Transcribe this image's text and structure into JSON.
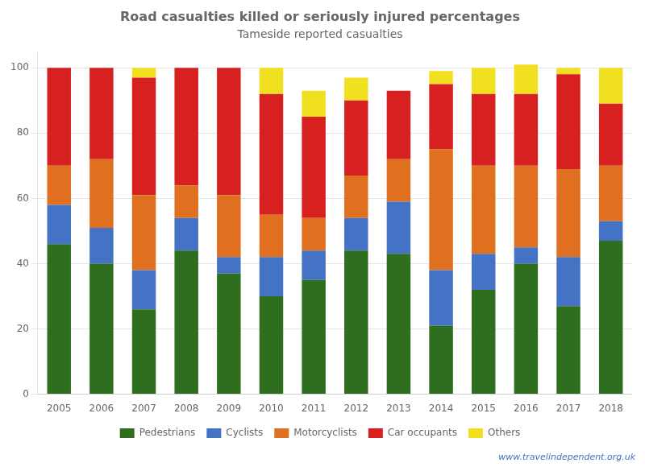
{
  "chart_data": {
    "type": "bar",
    "title": "Road casualties killed or seriously injured percentages",
    "subtitle": "Tameside reported casualties",
    "categories": [
      "2005",
      "2006",
      "2007",
      "2008",
      "2009",
      "2010",
      "2011",
      "2012",
      "2013",
      "2014",
      "2015",
      "2016",
      "2017",
      "2018"
    ],
    "series": [
      {
        "name": "Pedestrians",
        "color": "#2e6e1e",
        "values": [
          46,
          40,
          26,
          44,
          37,
          30,
          35,
          44,
          43,
          21,
          32,
          40,
          27,
          47
        ]
      },
      {
        "name": "Cyclists",
        "color": "#4472c4",
        "values": [
          12,
          11,
          12,
          10,
          5,
          12,
          9,
          10,
          16,
          17,
          11,
          5,
          15,
          6
        ]
      },
      {
        "name": "Motorcyclists",
        "color": "#e07020",
        "values": [
          12,
          21,
          23,
          10,
          19,
          13,
          10,
          13,
          13,
          37,
          27,
          25,
          27,
          17
        ]
      },
      {
        "name": "Car occupants",
        "color": "#d72020",
        "values": [
          30,
          28,
          36,
          36,
          39,
          37,
          31,
          23,
          21,
          20,
          22,
          22,
          29,
          19
        ]
      },
      {
        "name": "Others",
        "color": "#f0e020",
        "values": [
          0,
          0,
          3,
          0,
          0,
          8,
          8,
          7,
          0,
          4,
          8,
          9,
          2,
          11
        ]
      }
    ],
    "annotations": [
      "www.travelindependent.org.uk"
    ],
    "ylim": [
      0,
      105
    ],
    "yticks": [
      0,
      20,
      40,
      60,
      80,
      100
    ],
    "stacked": true,
    "grid": true,
    "legend": "bottom"
  }
}
